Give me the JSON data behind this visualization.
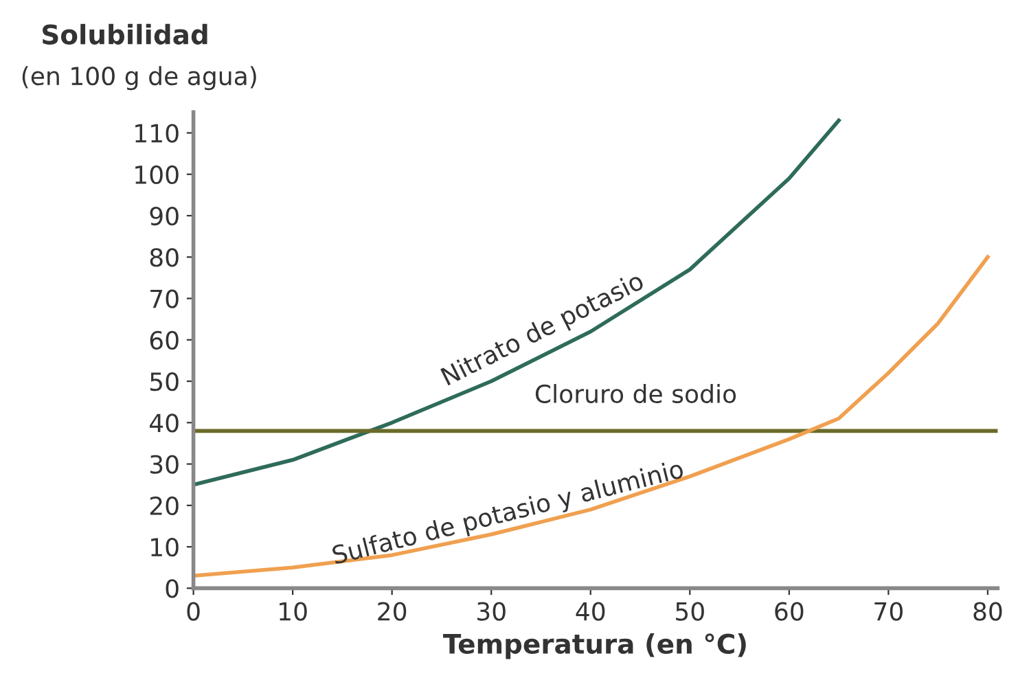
{
  "chart_data": {
    "type": "line",
    "title": "Solubilidad",
    "subtitle": "(en 100 g de agua)",
    "xlabel": "Temperatura (en °C)",
    "xlim": [
      0,
      81
    ],
    "ylim": [
      0,
      115
    ],
    "xticks": [
      0,
      10,
      20,
      30,
      40,
      50,
      60,
      70,
      80
    ],
    "yticks": [
      0,
      10,
      20,
      30,
      40,
      50,
      60,
      70,
      80,
      90,
      100,
      110
    ],
    "grid": false,
    "legend": false,
    "marker": "none",
    "line_style": "solid",
    "series": [
      {
        "name": "Nitrato de potasio",
        "color": "#2e6b5a",
        "x": [
          0,
          10,
          20,
          30,
          40,
          50,
          60,
          65
        ],
        "values": [
          25,
          31,
          40,
          50,
          62,
          77,
          99,
          113
        ]
      },
      {
        "name": "Cloruro de sodio",
        "color": "#6b6b2a",
        "x": [
          0,
          81
        ],
        "values": [
          38,
          38
        ]
      },
      {
        "name": "Sulfato de potasio y aluminio",
        "color": "#f0a050",
        "x": [
          0,
          10,
          20,
          30,
          40,
          50,
          60,
          65,
          70,
          75,
          80
        ],
        "values": [
          3,
          5,
          8,
          13,
          19,
          27,
          36,
          41,
          52,
          64,
          80
        ]
      }
    ]
  }
}
